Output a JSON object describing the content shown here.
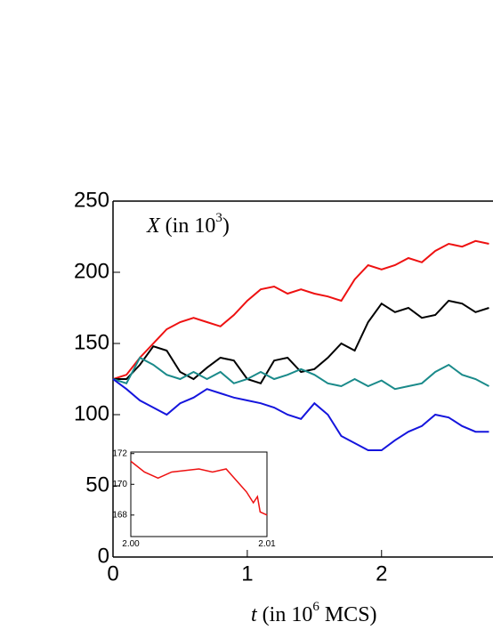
{
  "chart_data": [
    {
      "type": "line",
      "x_label": [
        "t",
        " (in 10",
        "6",
        " MCS)"
      ],
      "annotation": [
        "X",
        " (in 10",
        "3",
        ")"
      ],
      "x": [
        0,
        0.1,
        0.2,
        0.3,
        0.4,
        0.5,
        0.6,
        0.7,
        0.8,
        0.9,
        1.0,
        1.1,
        1.2,
        1.3,
        1.4,
        1.5,
        1.6,
        1.7,
        1.8,
        1.9,
        2.0,
        2.1,
        2.2,
        2.3,
        2.4,
        2.5,
        2.6,
        2.7,
        2.8
      ],
      "series": [
        {
          "color": "#ee1111",
          "values": [
            125,
            128,
            140,
            150,
            160,
            165,
            168,
            165,
            162,
            170,
            180,
            188,
            190,
            185,
            188,
            185,
            183,
            180,
            195,
            205,
            202,
            205,
            210,
            207,
            215,
            220,
            218,
            222,
            220
          ]
        },
        {
          "color": "#000000",
          "values": [
            125,
            125,
            135,
            148,
            145,
            130,
            125,
            133,
            140,
            138,
            125,
            122,
            138,
            140,
            130,
            132,
            140,
            150,
            145,
            165,
            178,
            172,
            175,
            168,
            170,
            180,
            178,
            172,
            175
          ]
        },
        {
          "color": "#1a8a8a",
          "values": [
            125,
            122,
            140,
            135,
            128,
            125,
            130,
            125,
            130,
            122,
            125,
            130,
            125,
            128,
            132,
            128,
            122,
            120,
            125,
            120,
            124,
            118,
            120,
            122,
            130,
            135,
            128,
            125,
            120
          ]
        },
        {
          "color": "#1515dd",
          "values": [
            125,
            118,
            110,
            105,
            100,
            108,
            112,
            118,
            115,
            112,
            110,
            108,
            105,
            100,
            97,
            108,
            100,
            85,
            80,
            75,
            75,
            82,
            88,
            92,
            100,
            98,
            92,
            88,
            88
          ]
        }
      ],
      "xlim": [
        0,
        2.83
      ],
      "ylim": [
        0,
        250
      ],
      "xticks": [
        0,
        1,
        2
      ],
      "yticks": [
        0,
        50,
        100,
        150,
        200,
        250
      ]
    },
    {
      "type": "line",
      "x": [
        2.0,
        2.001,
        2.002,
        2.003,
        2.004,
        2.005,
        2.006,
        2.007,
        2.0075,
        2.008,
        2.0085,
        2.009,
        2.0093,
        2.0095,
        2.01
      ],
      "series": [
        {
          "color": "#ee1111",
          "values": [
            171.5,
            170.8,
            170.4,
            170.8,
            170.9,
            171.0,
            170.8,
            171.0,
            170.5,
            170.0,
            169.5,
            168.8,
            169.2,
            168.2,
            168.0
          ]
        }
      ],
      "xlim": [
        2.0,
        2.01
      ],
      "ylim": [
        166.6,
        172.1
      ],
      "xticks": [
        {
          "value": 2.0,
          "label": "2.00"
        },
        {
          "value": 2.01,
          "label": "2.01"
        }
      ],
      "yticks": [
        168,
        170,
        172
      ]
    }
  ]
}
